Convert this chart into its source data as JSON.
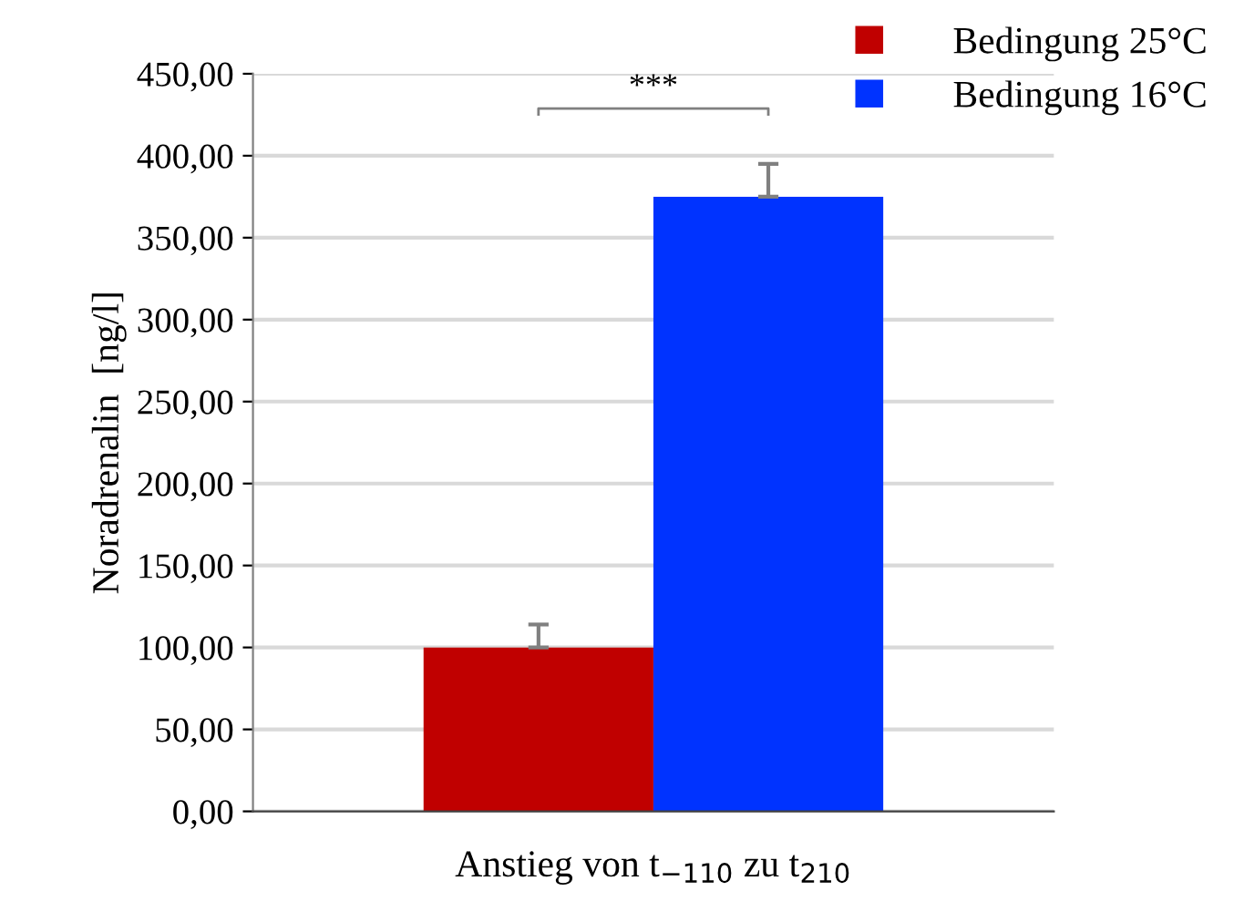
{
  "chart_data": {
    "type": "bar",
    "xlabel": "Anstieg von t$_{−110}$ zu t$_{210}$",
    "ylabel": "Noradrenalin  [ng/l]",
    "categories": [
      null
    ],
    "series": [
      {
        "name": "Bedingung 25°C",
        "color": "#c00000",
        "values": [
          100
        ],
        "errors": [
          14
        ]
      },
      {
        "name": "Bedingung 16°C",
        "color": "#0033ff",
        "values": [
          375
        ],
        "errors": [
          20
        ]
      }
    ],
    "ylim": [
      0,
      450
    ],
    "yticks": [
      {
        "value": 0,
        "label": "0,00"
      },
      {
        "value": 50,
        "label": "50,00"
      },
      {
        "value": 100,
        "label": "100,00"
      },
      {
        "value": 150,
        "label": "150,00"
      },
      {
        "value": 200,
        "label": "200,00"
      },
      {
        "value": 250,
        "label": "250,00"
      },
      {
        "value": 300,
        "label": "300,00"
      },
      {
        "value": 350,
        "label": "350,00"
      },
      {
        "value": 400,
        "label": "400,00"
      },
      {
        "value": 450,
        "label": "450,00"
      }
    ],
    "grid": "y",
    "legend": "top right",
    "annotations": [
      "***"
    ]
  }
}
